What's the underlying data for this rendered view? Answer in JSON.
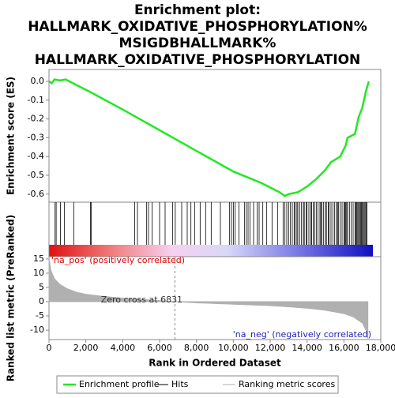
{
  "chart_data": [
    {
      "type": "line",
      "title": [
        "Enrichment plot:",
        "HALLMARK_OXIDATIVE_PHOSPHORYLATION%",
        "MSIGDBHALLMARK%",
        "HALLMARK_OXIDATIVE_PHOSPHORYLATION"
      ],
      "ylabel": "Enrichment score (ES)",
      "xlim": [
        0,
        18000
      ],
      "ylim": [
        -0.643,
        0.063
      ],
      "yticks": [
        {
          "value": 0,
          "label": "0.0"
        },
        -0.1,
        -0.2,
        -0.3,
        -0.4,
        -0.5,
        -0.6
      ],
      "series": [
        {
          "name": "Enrichment profile",
          "color": "#22e822",
          "x": [
            0,
            150,
            300,
            600,
            900,
            1300,
            2300,
            4000,
            6000,
            8000,
            10000,
            11500,
            12500,
            12800,
            13000,
            13500,
            14000,
            14500,
            15000,
            15300,
            15800,
            16100,
            16200,
            16600,
            16800,
            17000,
            17200,
            17350
          ],
          "values": [
            0,
            -0.01,
            0.01,
            0.005,
            0.01,
            -0.01,
            -0.06,
            -0.15,
            -0.26,
            -0.37,
            -0.48,
            -0.54,
            -0.59,
            -0.61,
            -0.6,
            -0.59,
            -0.56,
            -0.52,
            -0.47,
            -0.43,
            -0.4,
            -0.34,
            -0.3,
            -0.28,
            -0.19,
            -0.14,
            -0.05,
            0
          ]
        }
      ]
    },
    {
      "type": "hits",
      "xlim": [
        0,
        18000
      ],
      "series": [
        {
          "name": "Hits",
          "color": "#000000",
          "x": [
            330,
            390,
            620,
            830,
            1350,
            2250,
            2300,
            4650,
            4800,
            5300,
            5400,
            5600,
            6000,
            6300,
            6700,
            6850,
            7200,
            7500,
            7700,
            7900,
            8200,
            8500,
            8800,
            9300,
            9800,
            9900,
            10000,
            10100,
            10300,
            10600,
            10700,
            10800,
            10900,
            11100,
            11300,
            11400,
            11600,
            11800,
            12100,
            12400,
            12700,
            12800,
            12900,
            13000,
            13100,
            13200,
            13300,
            13350,
            13450,
            13500,
            13600,
            13700,
            13800,
            13850,
            13950,
            14000,
            14100,
            14200,
            14250,
            14350,
            14400,
            14500,
            14600,
            14700,
            14750,
            14800,
            14900,
            15000,
            15050,
            15150,
            15200,
            15300,
            15400,
            15500,
            15600,
            15650,
            15700,
            15800,
            15900,
            16000,
            16050,
            16100,
            16150,
            16200,
            16300,
            16400,
            16500,
            16600,
            16650,
            16700,
            16750,
            16800,
            16850,
            16900,
            16950,
            17000,
            17050,
            17100,
            17150,
            17200,
            17250
          ]
        }
      ]
    },
    {
      "type": "area",
      "ylabel": "Ranked list metric (PreRanked)",
      "xlabel": "Rank in Ordered Dataset",
      "xlim": [
        0,
        18000
      ],
      "ylim": [
        -13.3,
        15.8
      ],
      "xticks": [
        0,
        {
          "value": 2000,
          "label": "2,000"
        },
        {
          "value": 4000,
          "label": "4,000"
        },
        {
          "value": 6000,
          "label": "6,000"
        },
        {
          "value": 8000,
          "label": "8,000"
        },
        {
          "value": 10000,
          "label": "10,000"
        },
        {
          "value": 12000,
          "label": "12,000"
        },
        {
          "value": 14000,
          "label": "14,000"
        },
        {
          "value": 16000,
          "label": "16,000"
        },
        {
          "value": 18000,
          "label": "18,000"
        }
      ],
      "yticks": [
        15,
        10,
        5,
        0,
        -5,
        -10
      ],
      "zero_cross": 6831,
      "annotations": [
        "'na_pos' (positively correlated)",
        "Zero cross at 6831",
        "'na_neg' (negatively correlated)"
      ],
      "series": [
        {
          "name": "Ranking metric scores",
          "color": "#b0b0b0",
          "x": [
            0,
            100,
            300,
            600,
            1000,
            1500,
            2000,
            3000,
            4000,
            5000,
            6000,
            6831,
            8000,
            10000,
            12000,
            13000,
            14000,
            15000,
            16000,
            16500,
            17000,
            17200,
            17300
          ],
          "values": [
            15.5,
            11,
            8,
            6,
            4.5,
            3.3,
            2.6,
            1.8,
            1.2,
            0.8,
            0.4,
            0,
            -0.4,
            -0.9,
            -1.4,
            -1.8,
            -2.3,
            -3,
            -4.2,
            -5.3,
            -7.5,
            -10,
            -13
          ]
        }
      ]
    }
  ]
}
